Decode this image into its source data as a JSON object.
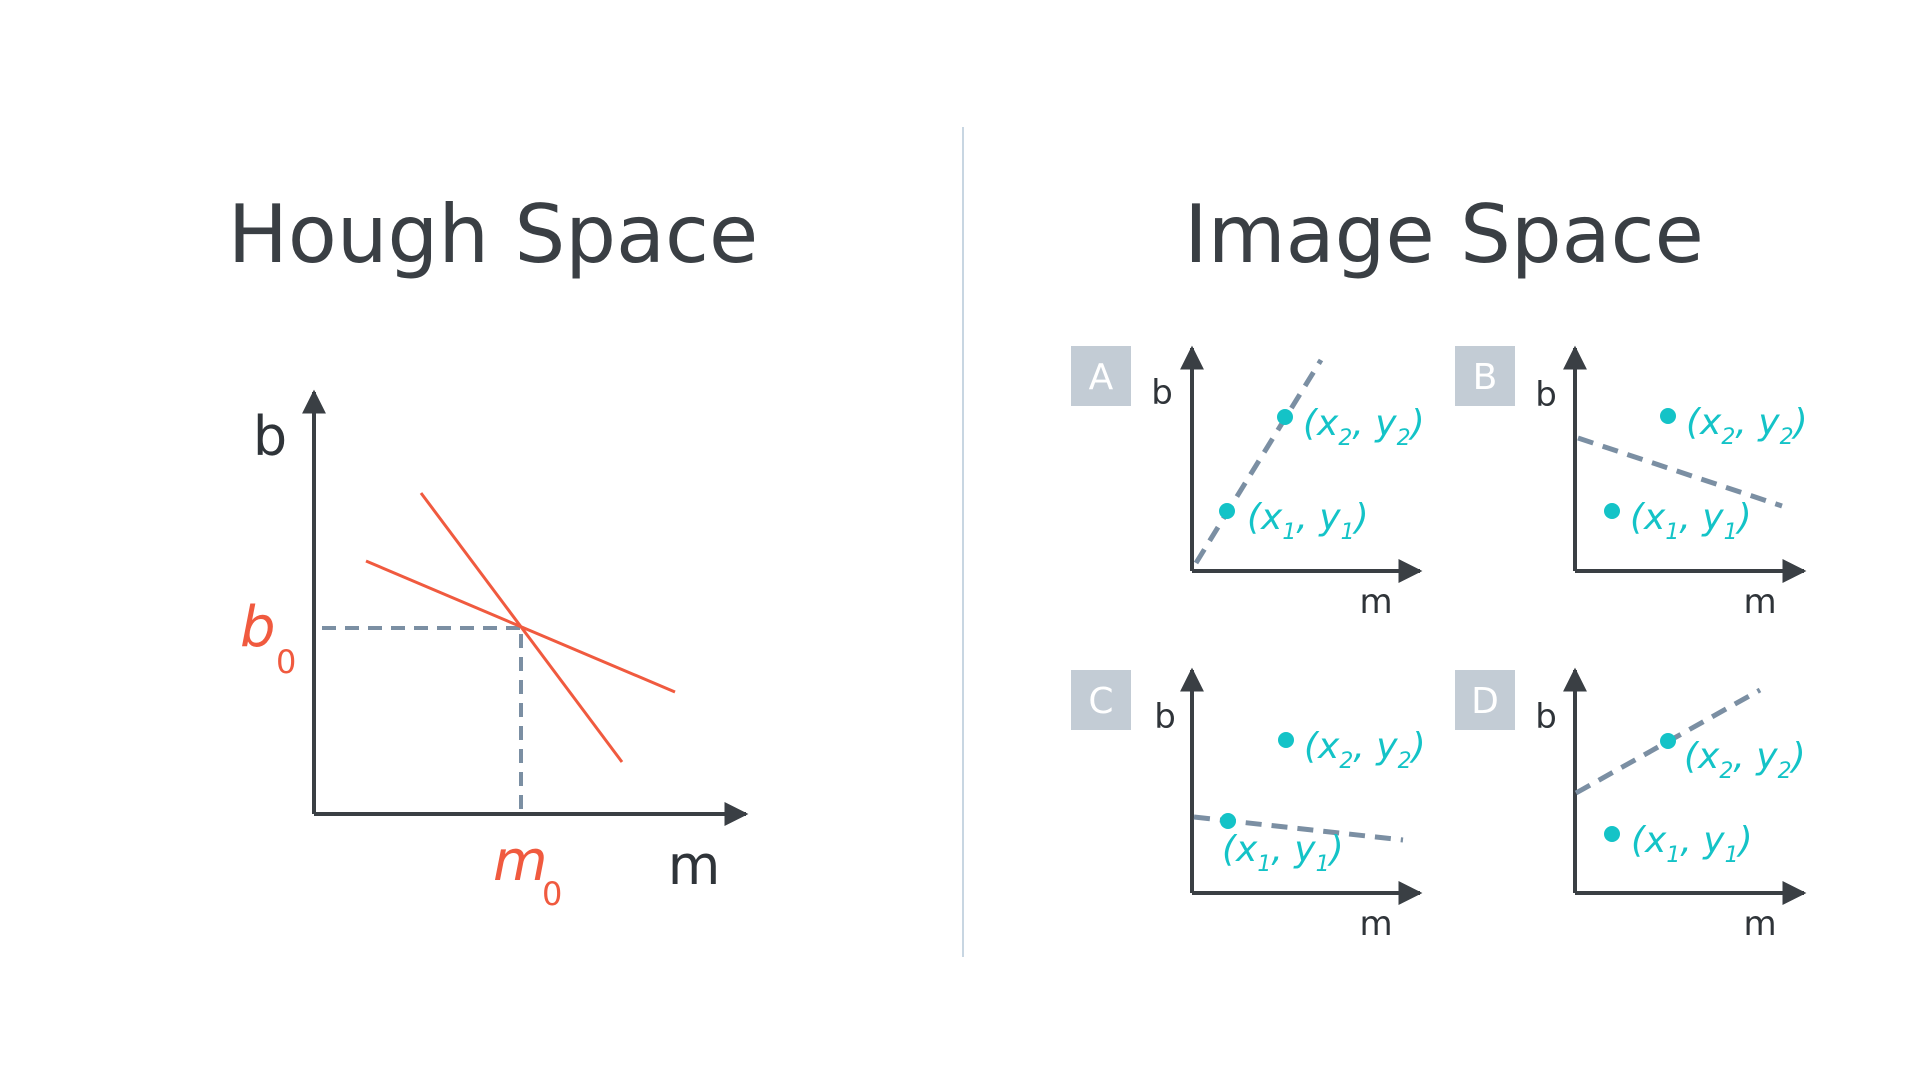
{
  "titles": {
    "hough": "Hough Space",
    "image": "Image Space"
  },
  "hough": {
    "y_axis_label": "b",
    "x_axis_label": "m",
    "b0": {
      "base": "b",
      "sub": "0"
    },
    "m0": {
      "base": "m",
      "sub": "0"
    }
  },
  "panels": [
    {
      "badge": "A",
      "y_axis_label": "b",
      "x_axis_label": "m",
      "p1": {
        "open": "(",
        "x": "x",
        "s1": "1",
        "comma": ", ",
        "y": "y",
        "s2": "1",
        "close": ")"
      },
      "p2": {
        "open": "(",
        "x": "x",
        "s1": "2",
        "comma": ", ",
        "y": "y",
        "s2": "2",
        "close": ")"
      }
    },
    {
      "badge": "B",
      "y_axis_label": "b",
      "x_axis_label": "m",
      "p1": {
        "open": "(",
        "x": "x",
        "s1": "1",
        "comma": ", ",
        "y": "y",
        "s2": "1",
        "close": ")"
      },
      "p2": {
        "open": "(",
        "x": "x",
        "s1": "2",
        "comma": ", ",
        "y": "y",
        "s2": "2",
        "close": ")"
      }
    },
    {
      "badge": "C",
      "y_axis_label": "b",
      "x_axis_label": "m",
      "p1": {
        "open": "(",
        "x": "x",
        "s1": "1",
        "comma": ", ",
        "y": "y",
        "s2": "1",
        "close": ")"
      },
      "p2": {
        "open": "(",
        "x": "x",
        "s1": "2",
        "comma": ", ",
        "y": "y",
        "s2": "2",
        "close": ")"
      }
    },
    {
      "badge": "D",
      "y_axis_label": "b",
      "x_axis_label": "m",
      "p1": {
        "open": "(",
        "x": "x",
        "s1": "1",
        "comma": ", ",
        "y": "y",
        "s2": "1",
        "close": ")"
      },
      "p2": {
        "open": "(",
        "x": "x",
        "s1": "2",
        "comma": ", ",
        "y": "y",
        "s2": "2",
        "close": ")"
      }
    }
  ],
  "colors": {
    "axis": "#3a3f44",
    "hough_lines": "#f05a3f",
    "dashed": "#7b8fa3",
    "points": "#14c3c7",
    "badge": "#c3ccd5",
    "divider": "#c8d6e2"
  }
}
